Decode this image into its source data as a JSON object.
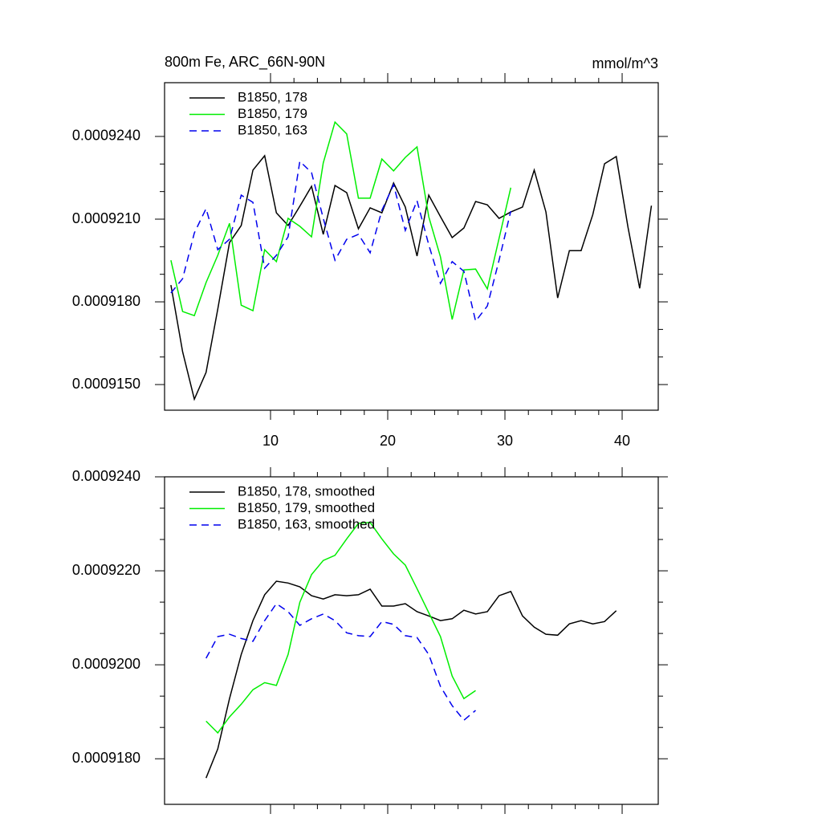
{
  "chart_data": [
    {
      "type": "line",
      "title": "800m Fe, ARC_66N-90N",
      "units": "mmol/m^3",
      "x": [
        1.5,
        2.5,
        3.5,
        4.5,
        5.5,
        6.5,
        7.5,
        8.5,
        9.5,
        10.5,
        11.5,
        12.5,
        13.5,
        14.5,
        15.5,
        16.5,
        17.5,
        18.5,
        19.5,
        20.5,
        21.5,
        22.5,
        23.5,
        24.5,
        25.5,
        26.5,
        27.5,
        28.5,
        29.5,
        30.5,
        31.5,
        32.5,
        33.5,
        34.5,
        35.5,
        36.5,
        37.5,
        38.5,
        39.5,
        40.5,
        41.5,
        42.5
      ],
      "series": [
        {
          "name": "B1850, 178",
          "color": "#000000",
          "dash": false,
          "values": [
            0.00091861,
            0.00091619,
            0.00091447,
            0.00091544,
            0.00091774,
            0.00092015,
            0.00092077,
            0.00092278,
            0.0009233,
            0.00092123,
            0.00092077,
            0.00092147,
            0.00092219,
            0.00092045,
            0.00092222,
            0.00092196,
            0.00092065,
            0.00092141,
            0.00092123,
            0.00092231,
            0.00092144,
            0.00091966,
            0.00092187,
            0.00092109,
            0.00092033,
            0.00092068,
            0.00092164,
            0.00092152,
            0.00092103,
            0.00092126,
            0.00092144,
            0.00092278,
            0.00092126,
            0.00091814,
            0.00091986,
            0.00091986,
            0.00092117,
            0.00092301,
            0.00092327,
            0.00092071,
            0.00091849,
            0.00092149
          ]
        },
        {
          "name": "B1850, 179",
          "color": "#00ee00",
          "dash": false,
          "values": [
            0.00091951,
            0.00091765,
            0.0009175,
            0.0009187,
            0.00091969,
            0.00092085,
            0.00091788,
            0.00091768,
            0.00091989,
            0.00091946,
            0.00092103,
            0.00092074,
            0.00092036,
            0.00092304,
            0.00092452,
            0.00092409,
            0.00092176,
            0.00092176,
            0.00092318,
            0.00092275,
            0.00092324,
            0.00092362,
            0.00092109,
            0.00091963,
            0.00091736,
            0.00091916,
            0.00091919,
            0.00091847,
            0.0009203,
            0.00092214,
            null,
            null,
            null,
            null,
            null,
            null,
            null,
            null,
            null,
            null,
            null,
            null
          ]
        },
        {
          "name": "B1850, 163",
          "color": "#0000ee",
          "dash": true,
          "values": [
            0.00091832,
            0.00091884,
            0.0009205,
            0.00092138,
            0.00091989,
            0.00092027,
            0.00092187,
            0.00092161,
            0.00091922,
            0.00091969,
            0.00092036,
            0.0009231,
            0.00092269,
            0.00092103,
            0.00091951,
            0.00092027,
            0.00092045,
            0.00091978,
            0.00092132,
            0.00092225,
            0.00092059,
            0.00092167,
            0.00092007,
            0.00091867,
            0.00091946,
            0.00091911,
            0.0009173,
            0.00091785,
            0.00091951,
            0.00092129,
            null,
            null,
            null,
            null,
            null,
            null,
            null,
            null,
            null,
            null,
            null,
            null
          ]
        }
      ],
      "xlim": [
        0.96,
        43.08
      ],
      "ylim": [
        0.00091407,
        0.00092595
      ],
      "xticks": [
        10,
        20,
        30,
        40
      ],
      "yticks": [
        {
          "value": 0.000915,
          "label": "0.0009150"
        },
        {
          "value": 0.000918,
          "label": "0.0009180"
        },
        {
          "value": 0.000921,
          "label": "0.0009210"
        },
        {
          "value": 0.000924,
          "label": "0.0009240"
        }
      ],
      "legend": "upper left",
      "xtick_labels": true
    },
    {
      "type": "line",
      "x": [
        1.5,
        2.5,
        3.5,
        4.5,
        5.5,
        6.5,
        7.5,
        8.5,
        9.5,
        10.5,
        11.5,
        12.5,
        13.5,
        14.5,
        15.5,
        16.5,
        17.5,
        18.5,
        19.5,
        20.5,
        21.5,
        22.5,
        23.5,
        24.5,
        25.5,
        26.5,
        27.5,
        28.5,
        29.5,
        30.5,
        31.5,
        32.5,
        33.5,
        34.5,
        35.5,
        36.5,
        37.5,
        38.5,
        39.5
      ],
      "series": [
        {
          "name": "B1850, 178, smoothed",
          "color": "#000000",
          "dash": false,
          "values": [
            null,
            null,
            null,
            0.00091759,
            0.00091821,
            0.00091928,
            0.00092022,
            0.00092094,
            0.00092149,
            0.00092178,
            0.00092174,
            0.00092166,
            0.00092147,
            0.0009214,
            0.00092149,
            0.00092147,
            0.00092149,
            0.00092161,
            0.00092125,
            0.00092125,
            0.0009213,
            0.00092113,
            0.00092104,
            0.00092094,
            0.00092098,
            0.00092116,
            0.00092108,
            0.00092113,
            0.00092147,
            0.00092156,
            0.00092104,
            0.0009208,
            0.00092065,
            0.00092063,
            0.00092087,
            0.00092094,
            0.00092087,
            0.00092092,
            0.00092115
          ]
        },
        {
          "name": "B1850, 179, smoothed",
          "color": "#00ee00",
          "dash": false,
          "values": [
            null,
            null,
            null,
            0.0009188,
            0.00091855,
            0.00091889,
            0.00091916,
            0.00091947,
            0.00091962,
            0.00091956,
            0.00092022,
            0.00092133,
            0.00092192,
            0.00092222,
            0.00092233,
            0.00092268,
            0.00092301,
            0.00092303,
            0.00092268,
            0.00092236,
            0.00092212,
            0.00092162,
            0.00092111,
            0.0009206,
            0.00091976,
            0.00091928,
            0.00091945,
            null,
            null,
            null,
            null,
            null,
            null,
            null,
            null,
            null,
            null,
            null,
            null
          ]
        },
        {
          "name": "B1850, 163, smoothed",
          "color": "#0000ee",
          "dash": true,
          "values": [
            null,
            null,
            null,
            0.00092014,
            0.0009206,
            0.00092065,
            0.00092056,
            0.0009205,
            0.00092094,
            0.0009213,
            0.00092113,
            0.00092084,
            0.00092098,
            0.00092108,
            0.00092094,
            0.00092068,
            0.00092062,
            0.0009206,
            0.00092092,
            0.00092086,
            0.00092062,
            0.00092058,
            0.00092022,
            0.00091954,
            0.00091913,
            0.00091882,
            0.00091903,
            null,
            null,
            null,
            null,
            null,
            null,
            null,
            null,
            null,
            null,
            null,
            null
          ]
        }
      ],
      "xlim": [
        0.96,
        43.08
      ],
      "ylim": [
        0.00091703,
        0.000924
      ],
      "xticks": [
        10,
        20,
        30,
        40
      ],
      "yticks": [
        {
          "value": 0.000918,
          "label": "0.0009180"
        },
        {
          "value": 0.00092,
          "label": "0.0009200"
        },
        {
          "value": 0.000922,
          "label": "0.0009220"
        },
        {
          "value": 0.000924,
          "label": "0.0009240"
        }
      ],
      "legend": "upper left",
      "xtick_labels": false
    }
  ]
}
